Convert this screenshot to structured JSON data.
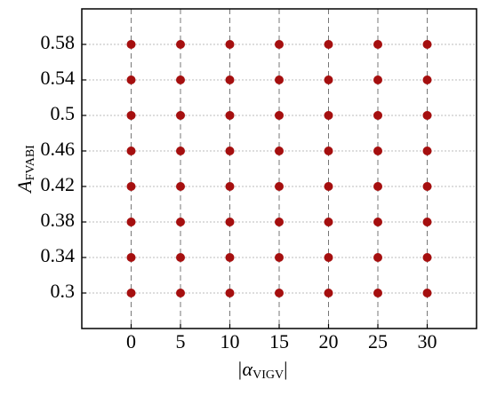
{
  "chart_data": {
    "type": "scatter",
    "x_label": {
      "prefix": "|α",
      "sub": "VIGV",
      "suffix": "|"
    },
    "y_label": {
      "main": "A",
      "sub": "FVABI"
    },
    "color": "#a50f0f",
    "x": [
      0,
      5,
      10,
      15,
      20,
      25,
      30,
      0,
      5,
      10,
      15,
      20,
      25,
      30,
      0,
      5,
      10,
      15,
      20,
      25,
      30,
      0,
      5,
      10,
      15,
      20,
      25,
      30,
      0,
      5,
      10,
      15,
      20,
      25,
      30,
      0,
      5,
      10,
      15,
      20,
      25,
      30,
      0,
      5,
      10,
      15,
      20,
      25,
      30,
      0,
      5,
      10,
      15,
      20,
      25,
      30
    ],
    "y": [
      0.3,
      0.3,
      0.3,
      0.3,
      0.3,
      0.3,
      0.3,
      0.34,
      0.34,
      0.34,
      0.34,
      0.34,
      0.34,
      0.34,
      0.38,
      0.38,
      0.38,
      0.38,
      0.38,
      0.38,
      0.38,
      0.42,
      0.42,
      0.42,
      0.42,
      0.42,
      0.42,
      0.42,
      0.46,
      0.46,
      0.46,
      0.46,
      0.46,
      0.46,
      0.46,
      0.5,
      0.5,
      0.5,
      0.5,
      0.5,
      0.5,
      0.5,
      0.54,
      0.54,
      0.54,
      0.54,
      0.54,
      0.54,
      0.54,
      0.58,
      0.58,
      0.58,
      0.58,
      0.58,
      0.58,
      0.58
    ],
    "xlim": [
      -5,
      35
    ],
    "ylim": [
      0.26,
      0.62
    ],
    "xticks": [
      0,
      5,
      10,
      15,
      20,
      25,
      30
    ],
    "yticks": [
      0.3,
      0.34,
      0.38,
      0.42,
      0.46,
      0.5,
      0.54,
      0.58
    ],
    "grid": true
  }
}
